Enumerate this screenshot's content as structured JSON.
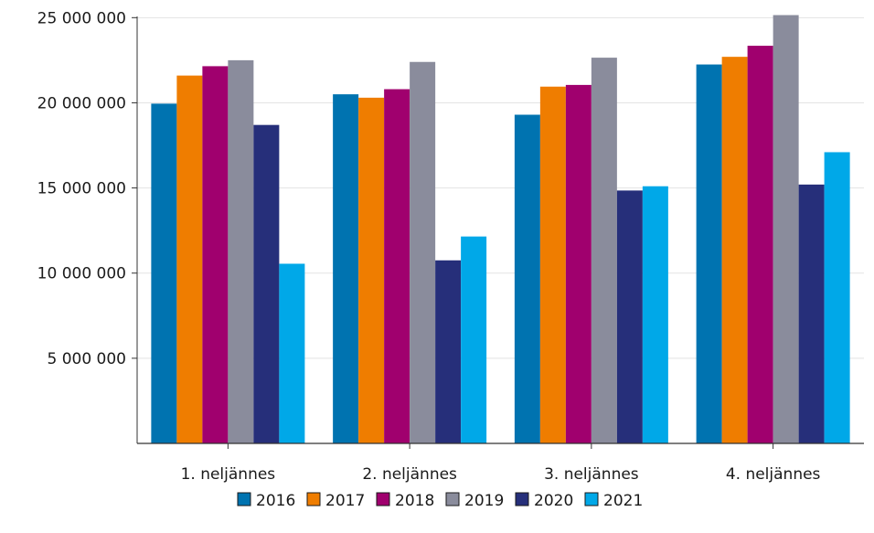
{
  "chart_data": {
    "type": "bar",
    "categories": [
      "1. neljännes",
      "2. neljännes",
      "3. neljännes",
      "4. neljännes"
    ],
    "series": [
      {
        "name": "2016",
        "color": "#0073b0",
        "values": [
          19950000,
          20500000,
          19300000,
          22250000
        ]
      },
      {
        "name": "2017",
        "color": "#ef7d00",
        "values": [
          21600000,
          20300000,
          20950000,
          22700000
        ]
      },
      {
        "name": "2018",
        "color": "#a0006e",
        "values": [
          22150000,
          20800000,
          21050000,
          23350000
        ]
      },
      {
        "name": "2019",
        "color": "#8a8c9c",
        "values": [
          22500000,
          22400000,
          22650000,
          25150000
        ]
      },
      {
        "name": "2020",
        "color": "#262f7a",
        "values": [
          18700000,
          10750000,
          14850000,
          15200000
        ]
      },
      {
        "name": "2021",
        "color": "#00a8e8",
        "values": [
          10550000,
          12150000,
          15100000,
          17100000
        ]
      }
    ],
    "yticks": [
      5000000,
      10000000,
      15000000,
      20000000,
      25000000
    ],
    "ytick_labels": [
      "5 000 000",
      "10 000 000",
      "15 000 000",
      "20 000 000",
      "25 000 000"
    ],
    "ylim": [
      0,
      25500000
    ],
    "grid": true,
    "legend_position": "bottom-center",
    "title": "",
    "xlabel": "",
    "ylabel": ""
  }
}
